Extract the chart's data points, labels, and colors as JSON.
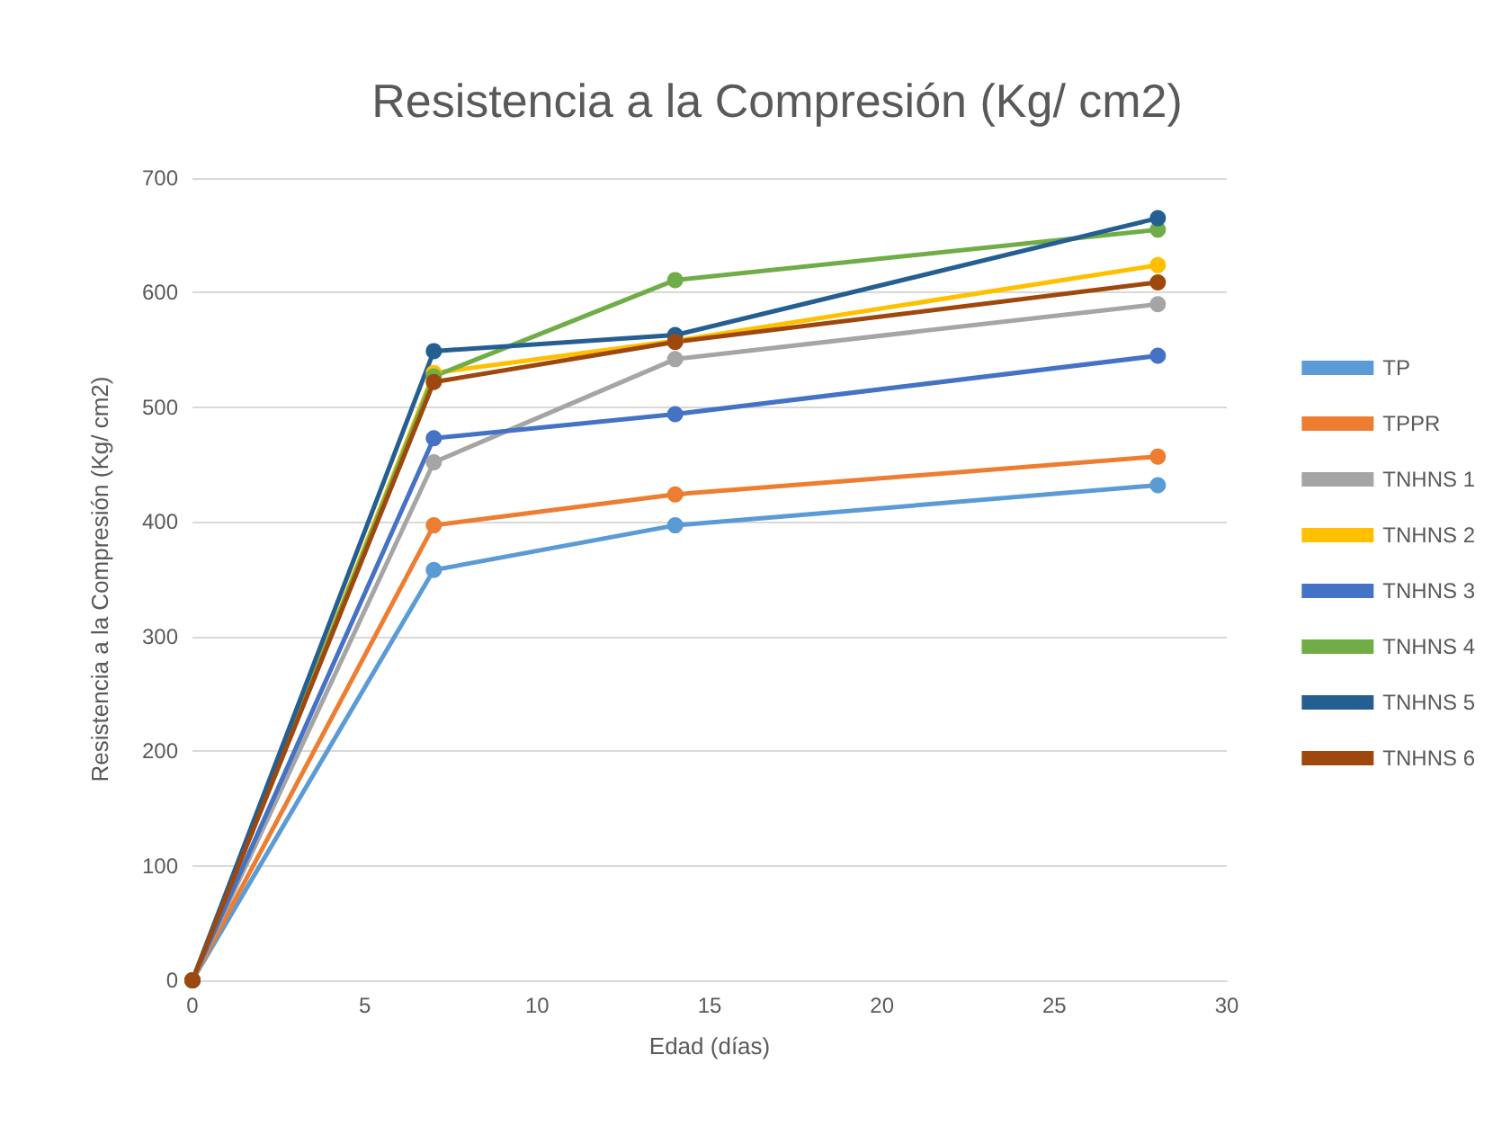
{
  "chart_data": {
    "type": "line",
    "title": "Resistencia a la Compresión (Kg/ cm2)",
    "xlabel": "Edad (días)",
    "ylabel": "Resistencia a la Compresión (Kg/ cm2)",
    "x": [
      0,
      7,
      14,
      28
    ],
    "series": [
      {
        "name": "TP",
        "color": "#5b9bd5",
        "values": [
          0,
          358,
          397,
          432
        ]
      },
      {
        "name": "TPPR",
        "color": "#ed7d31",
        "values": [
          0,
          397,
          424,
          457
        ]
      },
      {
        "name": "TNHNS 1",
        "color": "#a5a5a5",
        "values": [
          0,
          452,
          542,
          590
        ]
      },
      {
        "name": "TNHNS 2",
        "color": "#ffc000",
        "values": [
          0,
          530,
          558,
          624
        ]
      },
      {
        "name": "TNHNS 3",
        "color": "#4472c4",
        "values": [
          0,
          473,
          494,
          545
        ]
      },
      {
        "name": "TNHNS 4",
        "color": "#70ad47",
        "values": [
          0,
          527,
          611,
          655
        ]
      },
      {
        "name": "TNHNS 5",
        "color": "#255e91",
        "values": [
          0,
          549,
          563,
          665
        ]
      },
      {
        "name": "TNHNS 6",
        "color": "#9e480e",
        "values": [
          0,
          522,
          557,
          609
        ]
      }
    ],
    "xlim": [
      0,
      30
    ],
    "xticks": [
      0,
      5,
      10,
      15,
      20,
      25,
      30
    ],
    "ylim": [
      0,
      700
    ],
    "yticks": [
      0,
      100,
      200,
      300,
      400,
      500,
      600,
      700
    ],
    "grid": "y",
    "legend": "right",
    "marker": "circle",
    "line_style": "solid"
  }
}
